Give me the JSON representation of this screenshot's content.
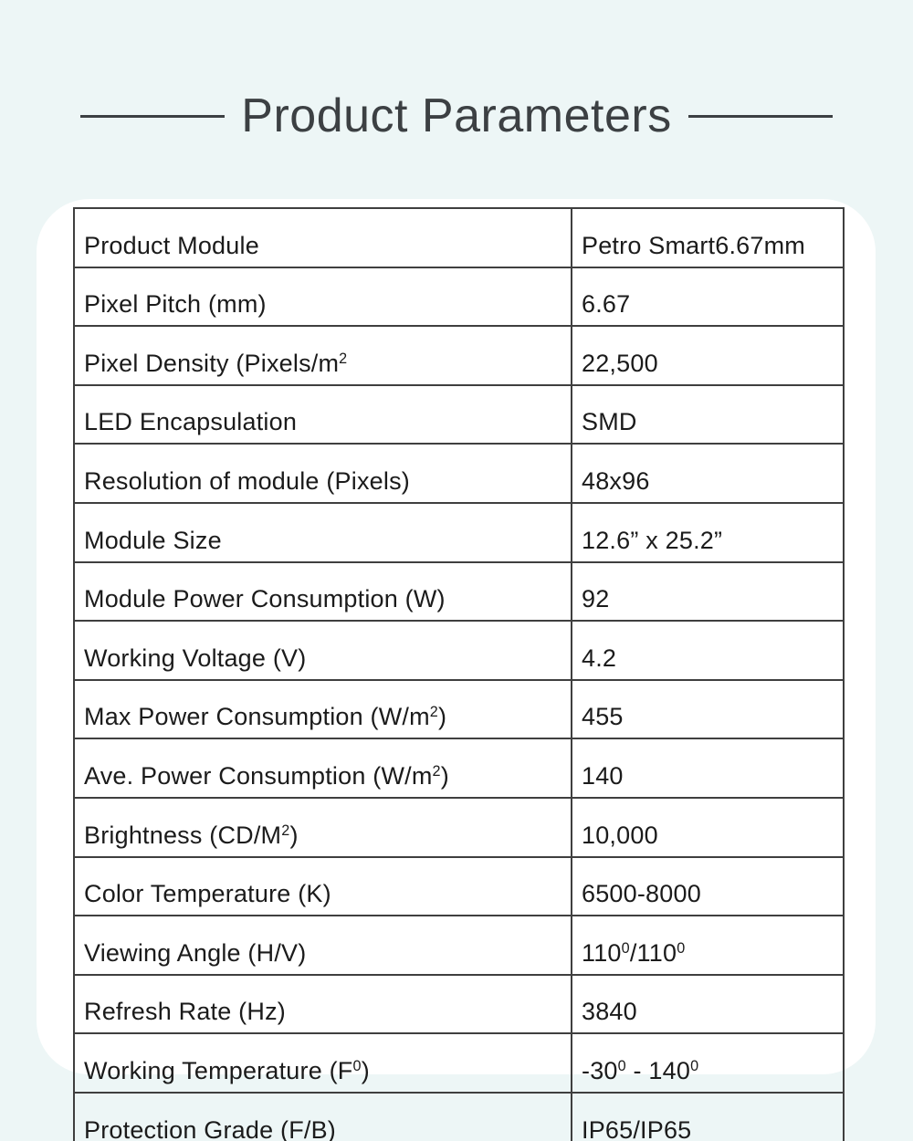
{
  "theme": {
    "background_color": "#edf6f6",
    "card_color": "#ffffff",
    "table_border_color": "#3f3f3f",
    "table_text_color": "#1b1b1b",
    "title_color": "#3c4043"
  },
  "header": {
    "title": "Product Parameters"
  },
  "table": {
    "rows": [
      {
        "label": [
          {
            "t": "Product Module"
          }
        ],
        "value": [
          {
            "t": "Petro Smart6.67mm"
          }
        ]
      },
      {
        "label": [
          {
            "t": "Pixel Pitch (mm)"
          }
        ],
        "value": [
          {
            "t": "6.67"
          }
        ]
      },
      {
        "label": [
          {
            "t": "Pixel Density (Pixels/m"
          },
          {
            "t": "2",
            "sup": true
          }
        ],
        "value": [
          {
            "t": "22,500"
          }
        ]
      },
      {
        "label": [
          {
            "t": "LED Encapsulation"
          }
        ],
        "value": [
          {
            "t": "SMD"
          }
        ]
      },
      {
        "label": [
          {
            "t": "Resolution of module (Pixels)"
          }
        ],
        "value": [
          {
            "t": "48x96"
          }
        ]
      },
      {
        "label": [
          {
            "t": "Module Size"
          }
        ],
        "value": [
          {
            "t": "12.6” x 25.2”"
          }
        ]
      },
      {
        "label": [
          {
            "t": "Module Power Consumption (W)"
          }
        ],
        "value": [
          {
            "t": "92"
          }
        ]
      },
      {
        "label": [
          {
            "t": "Working Voltage (V)"
          }
        ],
        "value": [
          {
            "t": "4.2"
          }
        ]
      },
      {
        "label": [
          {
            "t": "Max Power Consumption (W/m"
          },
          {
            "t": "2",
            "sup": true
          },
          {
            "t": ")"
          }
        ],
        "value": [
          {
            "t": "455"
          }
        ]
      },
      {
        "label": [
          {
            "t": "Ave. Power Consumption (W/m"
          },
          {
            "t": "2",
            "sup": true
          },
          {
            "t": ")"
          }
        ],
        "value": [
          {
            "t": "140"
          }
        ]
      },
      {
        "label": [
          {
            "t": "Brightness (CD/M"
          },
          {
            "t": "2",
            "sup": true
          },
          {
            "t": ")"
          }
        ],
        "value": [
          {
            "t": "10,000"
          }
        ]
      },
      {
        "label": [
          {
            "t": "Color Temperature (K)"
          }
        ],
        "value": [
          {
            "t": "6500-8000"
          }
        ]
      },
      {
        "label": [
          {
            "t": "Viewing Angle (H/V)"
          }
        ],
        "value": [
          {
            "t": "110"
          },
          {
            "t": "0",
            "sup": true
          },
          {
            "t": "/110"
          },
          {
            "t": "0",
            "sup": true
          }
        ]
      },
      {
        "label": [
          {
            "t": "Refresh Rate (Hz)"
          }
        ],
        "value": [
          {
            "t": "3840"
          }
        ]
      },
      {
        "label": [
          {
            "t": "Working Temperature (F"
          },
          {
            "t": "0",
            "sup": true
          },
          {
            "t": ")"
          }
        ],
        "value": [
          {
            "t": "-30"
          },
          {
            "t": "0",
            "sup": true
          },
          {
            "t": " - 140"
          },
          {
            "t": "0",
            "sup": true
          }
        ]
      },
      {
        "label": [
          {
            "t": "Protection Grade (F/B)"
          }
        ],
        "value": [
          {
            "t": "IP65/IP65"
          }
        ]
      }
    ]
  }
}
